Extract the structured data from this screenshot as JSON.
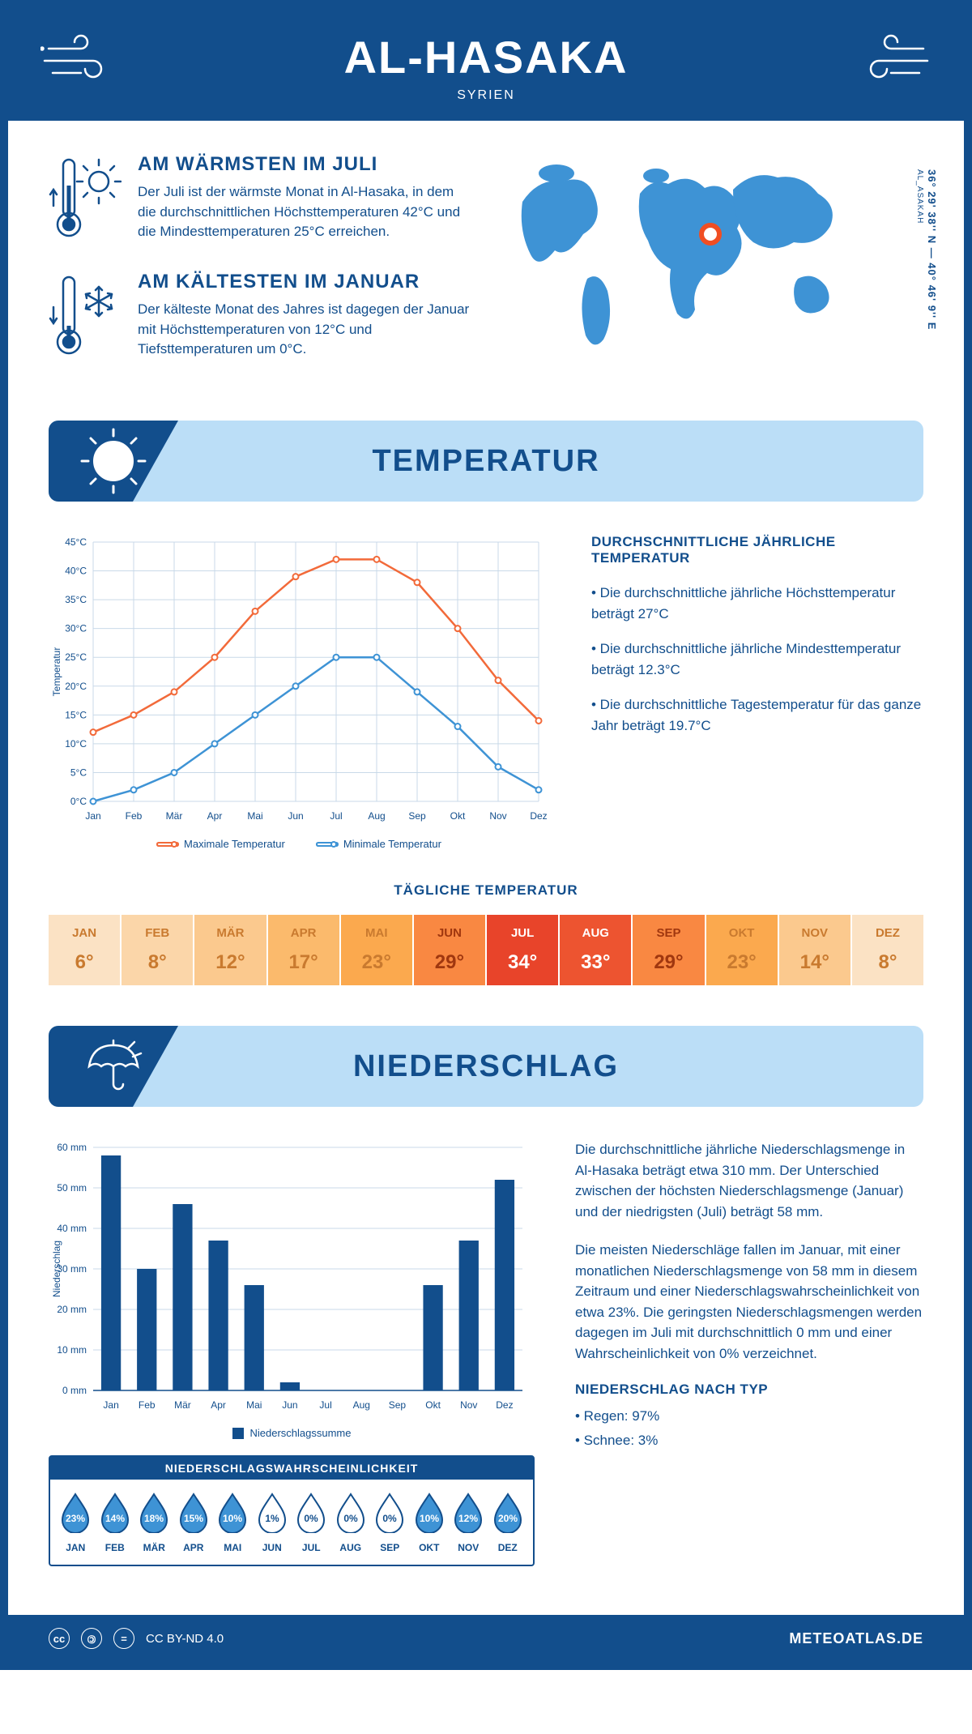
{
  "header": {
    "title": "AL-HASAKA",
    "subtitle": "SYRIEN"
  },
  "coords": {
    "main": "36° 29' 38'' N — 40° 46' 9'' E",
    "sub": "AL_ASAKAH"
  },
  "facts": {
    "warm": {
      "title": "AM WÄRMSTEN IM JULI",
      "text": "Der Juli ist der wärmste Monat in Al-Hasaka, in dem die durchschnittlichen Höchsttemperaturen 42°C und die Mindesttemperaturen 25°C erreichen."
    },
    "cold": {
      "title": "AM KÄLTESTEN IM JANUAR",
      "text": "Der kälteste Monat des Jahres ist dagegen der Januar mit Höchsttemperaturen von 12°C und Tiefsttemperaturen um 0°C."
    }
  },
  "months": [
    "Jan",
    "Feb",
    "Mär",
    "Apr",
    "Mai",
    "Jun",
    "Jul",
    "Aug",
    "Sep",
    "Okt",
    "Nov",
    "Dez"
  ],
  "months_upper": [
    "JAN",
    "FEB",
    "MÄR",
    "APR",
    "MAI",
    "JUN",
    "JUL",
    "AUG",
    "SEP",
    "OKT",
    "NOV",
    "DEZ"
  ],
  "temperature": {
    "section_title": "TEMPERATUR",
    "chart": {
      "type": "line",
      "ylabel": "Temperatur",
      "ymin": 0,
      "ymax": 45,
      "ystep": 5,
      "ysuffix": "°C",
      "series": [
        {
          "name": "Maximale Temperatur",
          "color": "#f26a3a",
          "values": [
            12,
            15,
            19,
            25,
            33,
            39,
            42,
            42,
            38,
            30,
            21,
            14
          ]
        },
        {
          "name": "Minimale Temperatur",
          "color": "#3e93d5",
          "values": [
            0,
            2,
            5,
            10,
            15,
            20,
            25,
            25,
            19,
            13,
            6,
            2
          ]
        }
      ],
      "grid_color": "#c9d9e8",
      "axis_color": "#124e8c",
      "label_fontsize": 12,
      "background_color": "#ffffff"
    },
    "info": {
      "title": "DURCHSCHNITTLICHE JÄHRLICHE TEMPERATUR",
      "items": [
        "• Die durchschnittliche jährliche Höchsttemperatur beträgt 27°C",
        "• Die durchschnittliche jährliche Mindesttemperatur beträgt 12.3°C",
        "• Die durchschnittliche Tagestemperatur für das ganze Jahr beträgt 19.7°C"
      ]
    },
    "daily": {
      "title": "TÄGLICHE TEMPERATUR",
      "values": [
        "6°",
        "8°",
        "12°",
        "17°",
        "23°",
        "29°",
        "34°",
        "33°",
        "29°",
        "23°",
        "14°",
        "8°"
      ],
      "bg_colors": [
        "#fbe2c4",
        "#fbd6a9",
        "#fbc98e",
        "#fbba6c",
        "#fba94e",
        "#f98842",
        "#e8442a",
        "#ed5430",
        "#f98842",
        "#fba94e",
        "#fbc98e",
        "#fbe2c4"
      ],
      "text_colors": [
        "#c97a2f",
        "#c97a2f",
        "#c97a2f",
        "#c97a2f",
        "#c97a2f",
        "#a0370f",
        "#ffffff",
        "#ffffff",
        "#a0370f",
        "#c97a2f",
        "#c97a2f",
        "#c97a2f"
      ]
    }
  },
  "precipitation": {
    "section_title": "NIEDERSCHLAG",
    "chart": {
      "type": "bar",
      "ylabel": "Niederschlag",
      "ymin": 0,
      "ymax": 60,
      "ystep": 10,
      "ysuffix": " mm",
      "bar_color": "#124e8c",
      "values": [
        58,
        30,
        46,
        37,
        26,
        2,
        0,
        0,
        0,
        26,
        37,
        52
      ],
      "legend": "Niederschlagssumme",
      "grid_color": "#c9d9e8",
      "axis_color": "#124e8c",
      "label_fontsize": 12,
      "background_color": "#ffffff",
      "bar_width": 0.55
    },
    "probability": {
      "title": "NIEDERSCHLAGSWAHRSCHEINLICHKEIT",
      "values": [
        "23%",
        "14%",
        "18%",
        "15%",
        "10%",
        "1%",
        "0%",
        "0%",
        "0%",
        "10%",
        "12%",
        "20%"
      ],
      "fill_threshold": 10,
      "drop_fill_color": "#3e93d5",
      "drop_empty_color": "#ffffff",
      "drop_stroke": "#124e8c",
      "text_on_fill": "#ffffff",
      "text_on_empty": "#124e8c"
    },
    "text1": "Die durchschnittliche jährliche Niederschlagsmenge in Al-Hasaka beträgt etwa 310 mm. Der Unterschied zwischen der höchsten Niederschlagsmenge (Januar) und der niedrigsten (Juli) beträgt 58 mm.",
    "text2": "Die meisten Niederschläge fallen im Januar, mit einer monatlichen Niederschlagsmenge von 58 mm in diesem Zeitraum und einer Niederschlagswahrscheinlichkeit von etwa 23%. Die geringsten Niederschlagsmengen werden dagegen im Juli mit durchschnittlich 0 mm und einer Wahrscheinlichkeit von 0% verzeichnet.",
    "by_type": {
      "title": "NIEDERSCHLAG NACH TYP",
      "items": [
        "• Regen: 97%",
        "• Schnee: 3%"
      ]
    }
  },
  "footer": {
    "license": "CC BY-ND 4.0",
    "brand": "METEOATLAS.DE"
  }
}
